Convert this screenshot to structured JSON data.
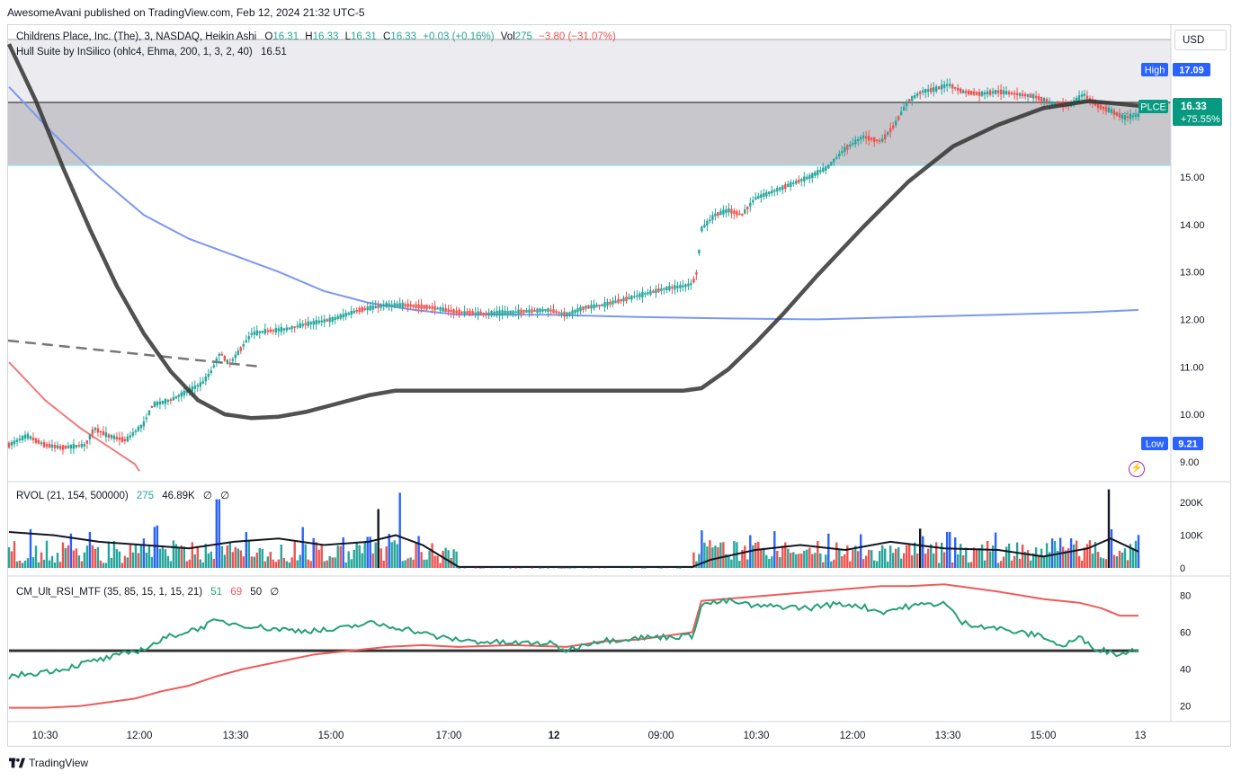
{
  "header": {
    "publisher_line": "AwesomeAvani published on TradingView.com, Feb 12, 2024 21:32 UTC-5"
  },
  "main_legend": {
    "symbol": "Childrens Place, Inc. (The), 3, NASDAQ, Heikin Ashi",
    "o_label": "O",
    "o_value": "16.31",
    "h_label": "H",
    "h_value": "16.33",
    "l_label": "L",
    "l_value": "16.31",
    "c_label": "C",
    "c_value": "16.33",
    "change": "+0.03 (+0.16%)",
    "vol_label": "Vol",
    "vol_value": "275",
    "vol_change": "−3.80 (−31.07%)",
    "indicator": "Hull Suite by InSilico (ohlc4, Ehma, 200, 1, 3, 2, 40)",
    "indicator_value": "16.51"
  },
  "rvol_legend": {
    "name": "RVOL (21, 154, 500000)",
    "v1": "275",
    "v2": "46.89K",
    "v3": "∅",
    "v4": "∅"
  },
  "rsi_legend": {
    "name": "CM_Ult_RSI_MTF (35, 85, 15, 1, 15, 21)",
    "v1": "51",
    "v2": "69",
    "v3": "50",
    "v4": "∅"
  },
  "price_axis": {
    "currency_button": "USD",
    "high_label": "High",
    "high_value": "17.09",
    "low_label": "Low",
    "low_value": "9.21",
    "symbol_tag": "PLCE",
    "last_price": "16.33",
    "last_change": "+75.55%"
  },
  "footer": {
    "brand": "TradingView"
  },
  "colors": {
    "up": "#26a69a",
    "down": "#ef5350",
    "hull": "#333333",
    "ma_blue": "#7b98f0",
    "ma_red": "#f07b7b",
    "rsi_green": "#26a07a",
    "rsi_red": "#f05a5a",
    "axis_text": "#131722",
    "tag_green": "#089981",
    "tag_blue": "#2962ff"
  },
  "chart_data": [
    {
      "type": "candlestick",
      "title": "Childrens Place, Inc. (The), 3, NASDAQ, Heikin Ashi",
      "ylim": [
        8.6,
        18.2
      ],
      "y_ticks": [
        "9.00",
        "10.00",
        "11.00",
        "12.00",
        "13.00",
        "14.00",
        "15.00"
      ],
      "x_ticks": [
        "10:30",
        "12:00",
        "13:30",
        "15:00",
        "17:00",
        "12",
        "09:00",
        "10:30",
        "12:00",
        "13:30",
        "15:00",
        "13"
      ],
      "price_path": [
        [
          0,
          9.35
        ],
        [
          20,
          9.55
        ],
        [
          40,
          9.35
        ],
        [
          60,
          9.3
        ],
        [
          85,
          9.35
        ],
        [
          95,
          9.7
        ],
        [
          110,
          9.55
        ],
        [
          130,
          9.45
        ],
        [
          150,
          9.8
        ],
        [
          160,
          10.2
        ],
        [
          180,
          10.3
        ],
        [
          200,
          10.5
        ],
        [
          215,
          10.65
        ],
        [
          225,
          10.9
        ],
        [
          235,
          11.3
        ],
        [
          245,
          11.05
        ],
        [
          255,
          11.3
        ],
        [
          270,
          11.7
        ],
        [
          285,
          11.75
        ],
        [
          310,
          11.8
        ],
        [
          330,
          11.9
        ],
        [
          360,
          12.0
        ],
        [
          390,
          12.2
        ],
        [
          420,
          12.3
        ],
        [
          440,
          12.3
        ],
        [
          470,
          12.25
        ],
        [
          500,
          12.15
        ],
        [
          530,
          12.12
        ],
        [
          560,
          12.15
        ],
        [
          600,
          12.2
        ],
        [
          620,
          12.1
        ],
        [
          640,
          12.25
        ],
        [
          660,
          12.3
        ],
        [
          680,
          12.4
        ],
        [
          700,
          12.5
        ],
        [
          730,
          12.65
        ],
        [
          750,
          12.7
        ],
        [
          760,
          12.75
        ],
        [
          765,
          13.0
        ],
        [
          770,
          13.9
        ],
        [
          785,
          14.2
        ],
        [
          800,
          14.3
        ],
        [
          815,
          14.2
        ],
        [
          830,
          14.55
        ],
        [
          850,
          14.7
        ],
        [
          870,
          14.85
        ],
        [
          890,
          15.0
        ],
        [
          910,
          15.2
        ],
        [
          930,
          15.6
        ],
        [
          950,
          15.85
        ],
        [
          970,
          15.75
        ],
        [
          985,
          16.1
        ],
        [
          1000,
          16.6
        ],
        [
          1015,
          16.8
        ],
        [
          1030,
          16.85
        ],
        [
          1045,
          16.95
        ],
        [
          1060,
          16.8
        ],
        [
          1080,
          16.75
        ],
        [
          1100,
          16.8
        ],
        [
          1120,
          16.75
        ],
        [
          1140,
          16.7
        ],
        [
          1160,
          16.55
        ],
        [
          1180,
          16.5
        ],
        [
          1195,
          16.75
        ],
        [
          1210,
          16.5
        ],
        [
          1225,
          16.4
        ],
        [
          1240,
          16.25
        ],
        [
          1255,
          16.3
        ]
      ]
    },
    {
      "type": "line",
      "name": "Hull Suite",
      "x": [
        0,
        30,
        60,
        90,
        120,
        150,
        180,
        210,
        240,
        270,
        300,
        330,
        360,
        400,
        430,
        460,
        500,
        550,
        600,
        650,
        700,
        750,
        770,
        800,
        830,
        860,
        900,
        950,
        1000,
        1050,
        1100,
        1150,
        1200,
        1230,
        1256
      ],
      "y": [
        17.8,
        16.6,
        15.2,
        13.9,
        12.7,
        11.7,
        10.9,
        10.3,
        10.0,
        9.92,
        9.95,
        10.05,
        10.2,
        10.4,
        10.5,
        10.5,
        10.5,
        10.5,
        10.5,
        10.5,
        10.5,
        10.5,
        10.55,
        10.95,
        11.5,
        12.1,
        12.95,
        13.95,
        14.9,
        15.65,
        16.1,
        16.45,
        16.6,
        16.55,
        16.5
      ]
    },
    {
      "type": "line",
      "name": "MA blue",
      "x": [
        0,
        50,
        100,
        150,
        200,
        250,
        300,
        350,
        400,
        450,
        500,
        600,
        700,
        800,
        900,
        1000,
        1100,
        1200,
        1256
      ],
      "y": [
        16.9,
        15.9,
        15.0,
        14.2,
        13.7,
        13.35,
        13.0,
        12.6,
        12.35,
        12.2,
        12.1,
        12.1,
        12.05,
        12.02,
        12.0,
        12.05,
        12.1,
        12.15,
        12.2
      ]
    },
    {
      "type": "line",
      "name": "MA red",
      "x": [
        0,
        20,
        40,
        60,
        80,
        100,
        120,
        140,
        145
      ],
      "y": [
        11.1,
        10.7,
        10.3,
        10.0,
        9.7,
        9.45,
        9.2,
        8.95,
        8.8
      ]
    },
    {
      "type": "bar",
      "title": "RVOL (21, 154, 500000)",
      "ylim": [
        0,
        250000
      ],
      "y_ticks": [
        "0",
        "100K",
        "200K"
      ],
      "avg_line": [
        [
          0,
          110000
        ],
        [
          50,
          100000
        ],
        [
          100,
          80000
        ],
        [
          150,
          70000
        ],
        [
          200,
          60000
        ],
        [
          250,
          80000
        ],
        [
          300,
          90000
        ],
        [
          350,
          70000
        ],
        [
          400,
          80000
        ],
        [
          430,
          100000
        ],
        [
          460,
          70000
        ],
        [
          500,
          3000
        ],
        [
          760,
          3000
        ],
        [
          780,
          25000
        ],
        [
          830,
          55000
        ],
        [
          880,
          70000
        ],
        [
          930,
          55000
        ],
        [
          980,
          80000
        ],
        [
          1040,
          60000
        ],
        [
          1100,
          55000
        ],
        [
          1150,
          35000
        ],
        [
          1200,
          60000
        ],
        [
          1225,
          90000
        ],
        [
          1256,
          50000
        ]
      ]
    },
    {
      "type": "line",
      "title": "CM_Ult_RSI_MTF (35, 85, 15, 1, 15, 21)",
      "ylim": [
        12,
        90
      ],
      "y_ticks": [
        "20",
        "40",
        "60",
        "80"
      ],
      "rsi": [
        [
          0,
          36
        ],
        [
          30,
          38
        ],
        [
          60,
          40
        ],
        [
          90,
          44
        ],
        [
          120,
          47
        ],
        [
          150,
          51
        ],
        [
          180,
          58
        ],
        [
          210,
          62
        ],
        [
          230,
          66
        ],
        [
          260,
          64
        ],
        [
          290,
          62
        ],
        [
          320,
          61
        ],
        [
          360,
          61
        ],
        [
          400,
          65
        ],
        [
          440,
          62
        ],
        [
          480,
          57
        ],
        [
          520,
          55
        ],
        [
          560,
          54
        ],
        [
          600,
          54
        ],
        [
          620,
          50
        ],
        [
          650,
          55
        ],
        [
          700,
          57
        ],
        [
          760,
          58
        ],
        [
          770,
          75
        ],
        [
          800,
          77
        ],
        [
          830,
          74
        ],
        [
          860,
          74
        ],
        [
          890,
          73
        ],
        [
          910,
          75
        ],
        [
          940,
          75
        ],
        [
          970,
          71
        ],
        [
          1000,
          74
        ],
        [
          1040,
          76
        ],
        [
          1060,
          65
        ],
        [
          1090,
          63
        ],
        [
          1120,
          60
        ],
        [
          1150,
          58
        ],
        [
          1170,
          52
        ],
        [
          1190,
          57
        ],
        [
          1210,
          51
        ],
        [
          1235,
          48
        ],
        [
          1256,
          51
        ]
      ],
      "signal": [
        [
          0,
          19
        ],
        [
          40,
          19
        ],
        [
          80,
          20
        ],
        [
          110,
          22
        ],
        [
          140,
          24
        ],
        [
          170,
          28
        ],
        [
          200,
          31
        ],
        [
          230,
          36
        ],
        [
          260,
          40
        ],
        [
          300,
          44
        ],
        [
          340,
          48
        ],
        [
          380,
          50
        ],
        [
          420,
          52
        ],
        [
          460,
          53
        ],
        [
          500,
          52
        ],
        [
          560,
          53
        ],
        [
          620,
          52
        ],
        [
          660,
          55
        ],
        [
          700,
          56
        ],
        [
          760,
          60
        ],
        [
          770,
          77
        ],
        [
          820,
          79
        ],
        [
          870,
          81
        ],
        [
          920,
          83
        ],
        [
          970,
          85
        ],
        [
          1000,
          85
        ],
        [
          1040,
          86
        ],
        [
          1070,
          84
        ],
        [
          1100,
          82
        ],
        [
          1150,
          78
        ],
        [
          1190,
          76
        ],
        [
          1215,
          73
        ],
        [
          1235,
          69
        ],
        [
          1256,
          69
        ]
      ],
      "baseline": 50
    }
  ]
}
